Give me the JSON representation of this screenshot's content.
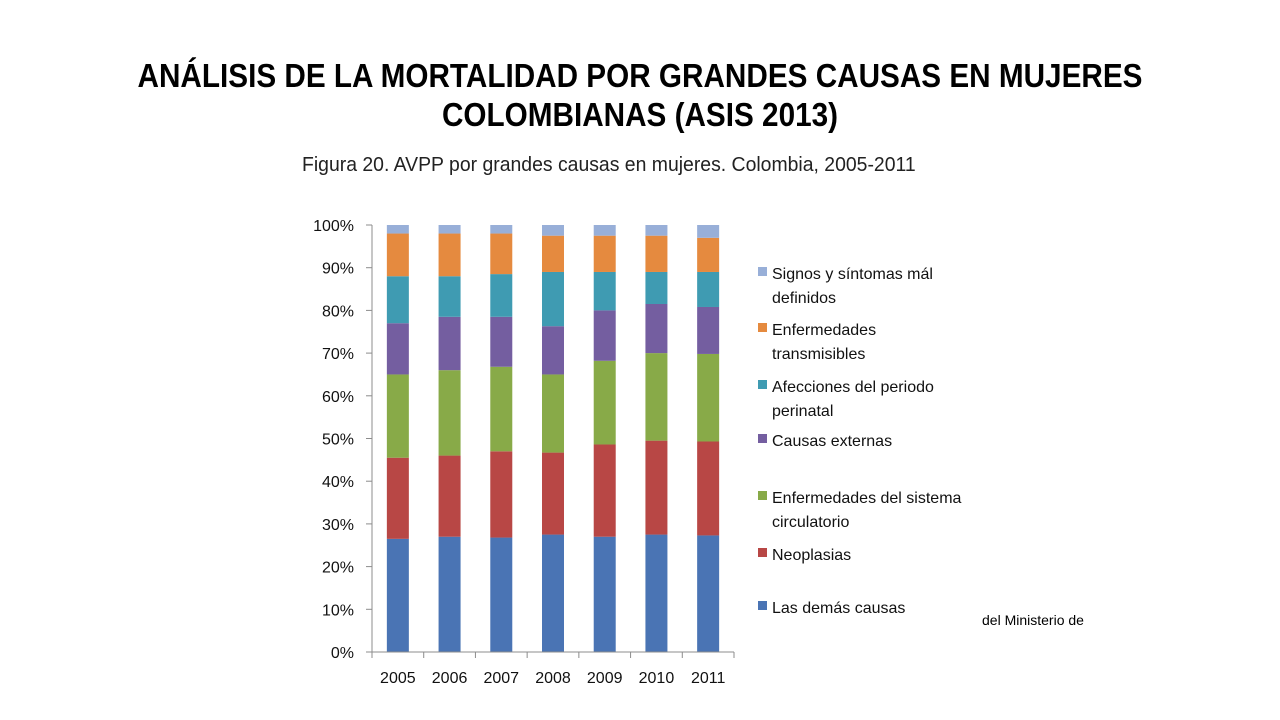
{
  "slide": {
    "title": "ANÁLISIS DE LA MORTALIDAD POR GRANDES CAUSAS EN MUJERES COLOMBIANAS (ASIS 2013)",
    "source_fragment": "del Ministerio de"
  },
  "chart_data": {
    "type": "bar",
    "stacked": true,
    "normalized": true,
    "title": "Figura 20. AVPP por grandes causas en mujeres. Colombia, 2005-2011",
    "xlabel": "",
    "ylabel": "",
    "ylim": [
      0,
      100
    ],
    "y_ticks": [
      "0%",
      "10%",
      "20%",
      "30%",
      "40%",
      "50%",
      "60%",
      "70%",
      "80%",
      "90%",
      "100%"
    ],
    "categories": [
      "2005",
      "2006",
      "2007",
      "2008",
      "2009",
      "2010",
      "2011"
    ],
    "legend_position": "right",
    "grid": false,
    "series": [
      {
        "name": "Las demás causas",
        "color": "#4a74b4",
        "values": [
          26.5,
          27,
          26.8,
          27.5,
          27,
          27.5,
          27.3
        ]
      },
      {
        "name": "Neoplasias",
        "color": "#b84745",
        "values": [
          19,
          19,
          20.2,
          19.2,
          21.6,
          22,
          22
        ]
      },
      {
        "name": "Enfermedades del sistema circulatorio",
        "color": "#88aa48",
        "values": [
          19.5,
          20,
          19.8,
          18.3,
          19.6,
          20.5,
          20.5
        ]
      },
      {
        "name": "Causas externas",
        "color": "#745ea0",
        "values": [
          12,
          12.5,
          11.7,
          11.3,
          11.8,
          11.5,
          11
        ]
      },
      {
        "name": "Afecciones del periodo perinatal",
        "color": "#3f9bb2",
        "values": [
          11,
          9.5,
          10,
          12.7,
          9,
          7.5,
          8.2
        ]
      },
      {
        "name": "Enfermedades transmisibles",
        "color": "#e58a3f",
        "values": [
          10,
          10,
          9.5,
          8.5,
          8.5,
          8.5,
          8
        ]
      },
      {
        "name": "Signos y síntomas mál definidos",
        "color": "#98afd8",
        "values": [
          2,
          2,
          2,
          2.5,
          2.5,
          2.5,
          3
        ]
      }
    ]
  }
}
